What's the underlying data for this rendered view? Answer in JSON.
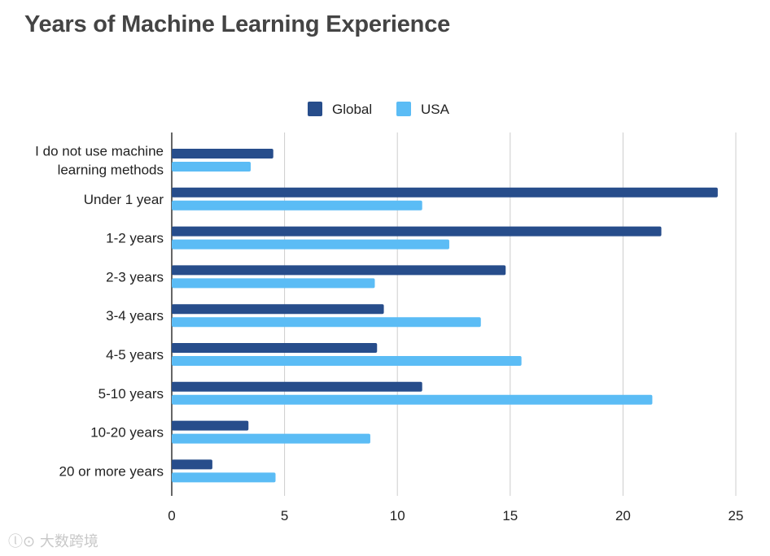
{
  "chart_data": {
    "type": "bar",
    "orientation": "horizontal",
    "title": "Years of Machine Learning Experience",
    "xlabel": "",
    "ylabel": "",
    "xlim": [
      0,
      25
    ],
    "xticks": [
      0,
      5,
      10,
      15,
      20,
      25
    ],
    "grid": true,
    "legend_position": "top-center",
    "categories": [
      [
        "I do not use machine",
        "learning methods"
      ],
      [
        "Under 1 year"
      ],
      [
        "1-2 years"
      ],
      [
        "2-3 years"
      ],
      [
        "3-4 years"
      ],
      [
        "4-5 years"
      ],
      [
        "5-10 years"
      ],
      [
        "10-20 years"
      ],
      [
        "20 or more years"
      ]
    ],
    "series": [
      {
        "name": "Global",
        "color": "#274d8b",
        "values": [
          4.5,
          24.2,
          21.7,
          14.8,
          9.4,
          9.1,
          11.1,
          3.4,
          1.8
        ]
      },
      {
        "name": "USA",
        "color": "#5bbcf5",
        "values": [
          3.5,
          11.1,
          12.3,
          9.0,
          13.7,
          15.5,
          21.3,
          8.8,
          4.6
        ]
      }
    ]
  },
  "watermark": {
    "text": "大数跨境"
  }
}
